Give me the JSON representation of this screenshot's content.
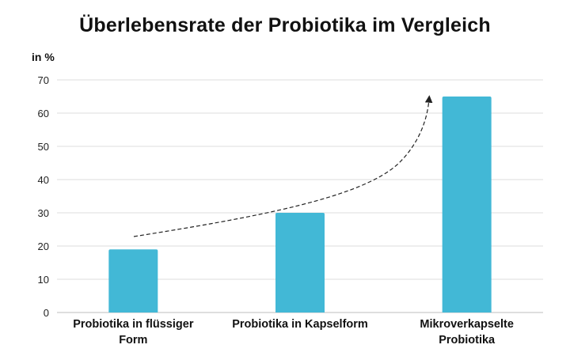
{
  "chart_data": {
    "type": "bar",
    "title": "Überlebensrate der Probiotika im Vergleich",
    "ylabel": "in %",
    "xlabel": "",
    "categories": [
      [
        "Probiotika in flüssiger",
        "Form"
      ],
      [
        "Probiotika in Kapselform"
      ],
      [
        "Mikroverkapselte",
        "Probiotika"
      ]
    ],
    "values": [
      19,
      30,
      65
    ],
    "ylim": [
      0,
      70
    ],
    "yticks": [
      0,
      10,
      20,
      30,
      40,
      50,
      60,
      70
    ],
    "grid": true,
    "bar_color": "#42b8d6",
    "annotation": "dashed-arrow-increase"
  }
}
